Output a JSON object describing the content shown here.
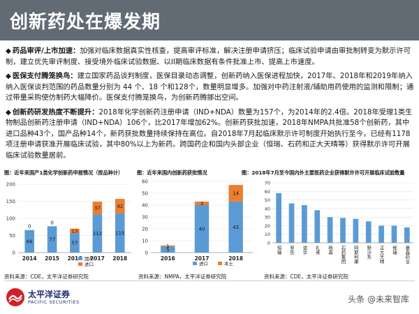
{
  "header": {
    "title": "创新药处在爆发期"
  },
  "bullets": [
    {
      "head": "药品审评/上市加速：",
      "text": "加强对临床数据真实性核查，提高审评标准，解决注册申请挤压；临床试验申请由审批制转变为默示许可制，建立优先审评制度、接受境外临床试验数据、以II期临床数据有条件批准上市、提高上市速度。"
    },
    {
      "head": "医保支付腾笼换鸟：",
      "text": "建立国家药品谈判制度，医保目录动态调整，创新药纳入医保进程加快，2017年、2018年和2019年纳入纳入医保谈判范围的药品数量分别为 44 个、18 个和128个，数量明显增多。加强对中药注射液/辅助用药使用的监测和限制；通过带量采购使仿制药大幅降价。医保支付腾笼换鸟，为创新药腾挪出空间。"
    },
    {
      "head": "创新药研发热度不断提升：",
      "text": "2018年化学创新药注册申请（IND+NDA）数量为157个，为2014年的2.4倍。2018年受理1类生物制品创新药注册申请（IND+NDA）106个，比2017年增加62%。创新药获批加速，2018年NMPA共批准58个创新药，其中进口品种43个，国产品种14个，新药获批数量持续保持在高位。自2018年7月起临床默示许可制度开始执行至今，已经有1178项注册申请获准开展临床试验，其中80%以上为新药。跨国药企和国内头部企业（恒瑞、石药和正大天晴等）获得默示许可开展临床试验数量居前。"
    }
  ],
  "captions": {
    "c1": "图：近年来国产1类化学创新药申报情况（按品种计）",
    "c2": "图：近年来国内创新药获批情况",
    "c3": "图：2018年7月至今国内外主要医药企业获得默许许可开展临床试验数量"
  },
  "sources": {
    "s1": "资料来源：CDE，太平洋证券研究院",
    "s2": "资料来源：NMPA，太平洋证券研究院",
    "s3": "资料来源：CDE，太平洋证券研究院"
  },
  "logo": {
    "cn": "太平洋证券",
    "en": "PACIFIC SECURITIES"
  },
  "watermark": "头条 @未来智库",
  "colors": {
    "header_bg": "#626a73",
    "blue": "#5b9bd5",
    "orange": "#ed7d31",
    "logo_navy": "#1b2d6b",
    "logo_red": "#d0202a"
  },
  "chart_data": [
    {
      "type": "bar",
      "stacked": true,
      "categories": [
        "2014",
        "2015",
        "2016",
        "2017",
        "2018"
      ],
      "series": [
        {
          "name": "国产",
          "values": [
            66,
            77,
            57,
            112,
            115
          ],
          "color": "#5b9bd5"
        },
        {
          "name": "进口",
          "values": [
            0,
            0,
            13,
            37,
            42
          ],
          "color": "#ed7d31"
        }
      ],
      "ylim": [
        0,
        200
      ],
      "yticks": [
        0,
        50,
        100,
        150,
        200
      ],
      "legend": "bottom-right",
      "grid": true
    },
    {
      "type": "bar",
      "stacked": true,
      "categories": [
        "2016",
        "2017",
        "2018"
      ],
      "series": [
        {
          "name": "进口",
          "values": [
            5,
            40,
            43
          ],
          "color": "#5b9bd5"
        },
        {
          "name": "本土",
          "values": [
            1,
            3,
            14
          ],
          "color": "#ed7d31"
        }
      ],
      "ylim": [
        0,
        60
      ],
      "yticks": [
        0,
        10,
        20,
        30,
        40,
        50,
        60
      ],
      "legend": "bottom",
      "grid": true
    },
    {
      "type": "bar",
      "categories": [
        "恒瑞",
        "罗氏",
        "诺华",
        "礼来",
        "杨森",
        "石药集团",
        "阿斯利康",
        "默沙东",
        "正大天晴",
        "辉瑞",
        "豪森药业"
      ],
      "values": [
        58,
        46,
        44,
        38,
        30,
        29,
        28,
        25,
        20,
        20,
        18
      ],
      "ylim": [
        0,
        70
      ],
      "yticks": [
        0,
        10,
        20,
        30,
        40,
        50,
        60,
        70
      ],
      "grid": true
    }
  ]
}
